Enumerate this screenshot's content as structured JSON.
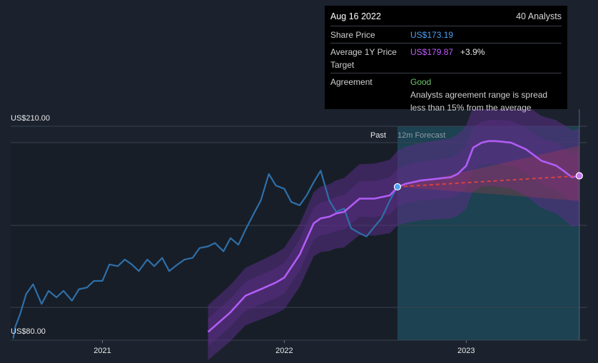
{
  "tooltip": {
    "date": "Aug 16 2022",
    "analysts": "40 Analysts",
    "share_price_label": "Share Price",
    "share_price_value": "US$173.19",
    "avg_target_label_1": "Average 1Y Price",
    "avg_target_label_2": "Target",
    "avg_target_value": "US$179.87",
    "avg_target_change": "+3.9%",
    "agreement_label": "Agreement",
    "agreement_value": "Good",
    "agreement_note_1": "Analysts agreement range is spread",
    "agreement_note_2": "less than 15% from the average"
  },
  "colors": {
    "background": "#1b222d",
    "price": "#2f6fa8",
    "target": "#b15cf5",
    "band": "#5a2f86",
    "forecast_region": "#1f4d5e",
    "trend": "#e0423f",
    "marker_price": "#4ea1f3",
    "marker_target": "#c874f0"
  },
  "chart_data": {
    "type": "line",
    "y_top_label": "US$210.00",
    "y_bottom_label": "US$80.00",
    "ylim": [
      80,
      210
    ],
    "xlim": [
      "2020-07-01",
      "2023-09-01"
    ],
    "x_ticks": [
      {
        "date": "2021-01-01",
        "label": "2021"
      },
      {
        "date": "2022-01-01",
        "label": "2022"
      },
      {
        "date": "2023-01-01",
        "label": "2023"
      }
    ],
    "region_labels": {
      "past": "Past",
      "forecast": "12m Forecast"
    },
    "forecast_start": "2022-08-16",
    "forecast_end": "2023-08-16",
    "series": [
      {
        "name": "Share Price",
        "x": [
          "2020-07-06",
          "2020-07-10",
          "2020-07-20",
          "2020-08-01",
          "2020-08-15",
          "2020-09-01",
          "2020-09-15",
          "2020-10-01",
          "2020-10-15",
          "2020-11-01",
          "2020-11-15",
          "2020-12-01",
          "2020-12-15",
          "2021-01-01",
          "2021-01-15",
          "2021-02-01",
          "2021-02-15",
          "2021-03-01",
          "2021-03-15",
          "2021-04-01",
          "2021-04-15",
          "2021-05-01",
          "2021-05-15",
          "2021-06-01",
          "2021-06-15",
          "2021-07-01",
          "2021-07-15",
          "2021-08-01",
          "2021-08-15",
          "2021-09-01",
          "2021-09-15",
          "2021-10-01",
          "2021-10-15",
          "2021-11-01",
          "2021-11-15",
          "2021-12-01",
          "2021-12-15",
          "2022-01-01",
          "2022-01-15",
          "2022-02-01",
          "2022-02-15",
          "2022-03-01",
          "2022-03-15",
          "2022-04-01",
          "2022-04-15",
          "2022-05-01",
          "2022-05-15",
          "2022-06-01",
          "2022-06-15",
          "2022-07-01",
          "2022-07-15",
          "2022-08-01",
          "2022-08-16"
        ],
        "values": [
          81,
          88,
          96,
          108,
          114,
          102,
          110,
          106,
          110,
          104,
          111,
          112,
          116,
          116,
          126,
          125,
          129,
          126,
          122,
          129,
          125,
          130,
          122,
          126,
          129,
          130,
          136,
          137,
          139,
          134,
          142,
          138,
          147,
          157,
          165,
          181,
          174,
          172,
          164,
          162,
          168,
          176,
          183,
          165,
          158,
          160,
          148,
          145,
          143,
          149,
          154,
          165,
          173.19
        ]
      },
      {
        "name": "Average 1Y Price Target",
        "x": [
          "2021-08-01",
          "2021-09-15",
          "2021-10-15",
          "2021-11-15",
          "2021-12-15",
          "2022-01-01",
          "2022-02-01",
          "2022-03-01",
          "2022-03-15",
          "2022-04-01",
          "2022-04-15",
          "2022-05-01",
          "2022-06-01",
          "2022-07-01",
          "2022-08-01",
          "2022-08-16",
          "2022-09-01",
          "2022-10-01",
          "2022-11-01",
          "2022-12-01",
          "2022-12-15",
          "2023-01-01",
          "2023-01-15",
          "2023-02-01",
          "2023-02-15",
          "2023-03-01",
          "2023-04-01",
          "2023-05-01",
          "2023-06-01",
          "2023-07-01",
          "2023-07-15",
          "2023-08-01",
          "2023-08-16"
        ],
        "values": [
          85,
          97,
          107,
          111,
          115,
          118,
          132,
          151,
          154,
          155,
          157,
          158,
          166,
          166,
          168,
          173,
          175,
          177,
          178,
          179,
          181,
          186,
          197,
          200,
          201,
          201,
          200,
          196,
          189,
          186,
          183,
          179,
          179.87
        ]
      }
    ],
    "trend_line": {
      "from": [
        "2022-08-16",
        173.19
      ],
      "to": [
        "2023-08-16",
        179.87
      ]
    }
  }
}
